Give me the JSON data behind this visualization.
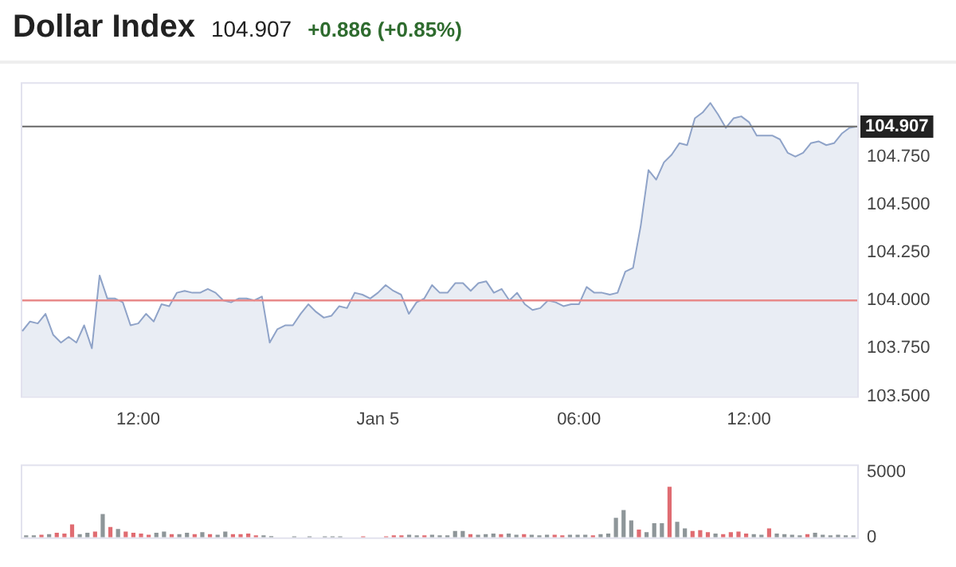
{
  "chart_data": [
    {
      "type": "area",
      "title": "Dollar Index",
      "subtitle": "104.907",
      "annotations": [
        "+0.886 (+0.85%)"
      ],
      "categories": [
        null,
        null,
        null,
        null,
        null,
        null,
        null,
        null,
        null,
        null,
        null,
        null,
        null,
        null,
        null,
        "12:00",
        null,
        null,
        null,
        null,
        null,
        null,
        null,
        null,
        null,
        null,
        null,
        null,
        null,
        null,
        null,
        null,
        null,
        null,
        null,
        null,
        null,
        null,
        null,
        null,
        null,
        null,
        null,
        null,
        null,
        null,
        "Jan 5",
        null,
        null,
        null,
        null,
        null,
        null,
        null,
        null,
        null,
        null,
        null,
        null,
        null,
        null,
        null,
        null,
        null,
        null,
        null,
        null,
        null,
        null,
        null,
        null,
        null,
        "06:00",
        null,
        null,
        null,
        null,
        null,
        null,
        null,
        null,
        null,
        null,
        null,
        null,
        null,
        null,
        null,
        null,
        null,
        null,
        null,
        null,
        null,
        "12:00",
        null,
        null,
        null,
        null,
        null,
        null,
        null,
        null,
        null,
        null,
        null,
        null,
        null,
        null
      ],
      "series": [
        {
          "color": "#8fa3c8",
          "values": [
            103.84,
            103.89,
            103.88,
            103.93,
            103.82,
            103.78,
            103.81,
            103.78,
            103.87,
            103.75,
            104.13,
            104.01,
            104.01,
            103.99,
            103.87,
            103.88,
            103.93,
            103.89,
            103.98,
            103.97,
            104.04,
            104.05,
            104.04,
            104.04,
            104.06,
            104.04,
            104.0,
            103.99,
            104.01,
            104.01,
            104.0,
            104.02,
            103.78,
            103.85,
            103.87,
            103.87,
            103.93,
            103.98,
            103.94,
            103.91,
            103.92,
            103.97,
            103.96,
            104.04,
            104.03,
            104.01,
            104.04,
            104.08,
            104.05,
            104.03,
            103.93,
            103.99,
            104.01,
            104.08,
            104.04,
            104.04,
            104.09,
            104.09,
            104.05,
            104.09,
            104.1,
            104.04,
            104.06,
            104.0,
            104.04,
            103.98,
            103.95,
            103.96,
            104.0,
            103.99,
            103.97,
            103.98,
            103.98,
            104.07,
            104.04,
            104.04,
            104.03,
            104.04,
            104.15,
            104.17,
            104.39,
            104.68,
            104.63,
            104.72,
            104.76,
            104.82,
            104.81,
            104.95,
            104.98,
            105.03,
            104.97,
            104.9,
            104.95,
            104.96,
            104.93,
            104.86,
            104.86,
            104.86,
            104.84,
            104.77,
            104.75,
            104.77,
            104.82,
            104.83,
            104.81,
            104.82,
            104.87,
            104.9,
            104.907
          ]
        }
      ],
      "ylim": [
        103.5,
        105.13
      ],
      "yticks": [
        {
          "value": 103.5,
          "label": "103.500"
        },
        {
          "value": 103.75,
          "label": "103.750"
        },
        {
          "value": 104.0,
          "label": "104.000"
        },
        {
          "value": 104.25,
          "label": "104.250"
        },
        {
          "value": 104.5,
          "label": "104.500"
        },
        {
          "value": 104.75,
          "label": "104.750"
        }
      ],
      "ref_lines": [
        {
          "axis": "y",
          "value": 104.907,
          "label": "104.907",
          "color": "#777777"
        },
        {
          "axis": "y",
          "value": 104.0,
          "color": "#e88a8a"
        }
      ],
      "marker": "none",
      "legend": false,
      "grid": false
    },
    {
      "type": "bar",
      "categories": [
        null,
        null,
        null,
        null,
        null,
        null,
        null,
        null,
        null,
        null,
        null,
        null,
        null,
        null,
        null,
        null,
        null,
        null,
        null,
        null,
        null,
        null,
        null,
        null,
        null,
        null,
        null,
        null,
        null,
        null,
        null,
        null,
        null,
        null,
        null,
        null,
        null,
        null,
        null,
        null,
        null,
        null,
        null,
        null,
        null,
        null,
        null,
        null,
        null,
        null,
        null,
        null,
        null,
        null,
        null,
        null,
        null,
        null,
        null,
        null,
        null,
        null,
        null,
        null,
        null,
        null,
        null,
        null,
        null,
        null,
        null,
        null,
        null,
        null,
        null,
        null,
        null,
        null,
        null,
        null,
        null,
        null,
        null,
        null,
        null,
        null,
        null,
        null,
        null,
        null,
        null,
        null,
        null,
        null,
        null,
        null,
        null,
        null,
        null,
        null,
        null,
        null,
        null,
        null,
        null,
        null,
        null,
        null,
        null
      ],
      "values": [
        150,
        150,
        200,
        250,
        350,
        300,
        1000,
        250,
        350,
        450,
        1800,
        800,
        650,
        450,
        350,
        300,
        200,
        350,
        450,
        250,
        250,
        350,
        250,
        400,
        250,
        200,
        450,
        250,
        250,
        300,
        150,
        150,
        100,
        null,
        null,
        80,
        null,
        80,
        null,
        80,
        80,
        80,
        null,
        null,
        80,
        null,
        null,
        80,
        150,
        150,
        200,
        150,
        150,
        200,
        150,
        150,
        500,
        500,
        250,
        200,
        250,
        300,
        250,
        300,
        200,
        250,
        200,
        150,
        200,
        200,
        150,
        200,
        200,
        200,
        150,
        250,
        300,
        1500,
        2100,
        1300,
        600,
        400,
        1100,
        1100,
        3900,
        1200,
        700,
        500,
        550,
        400,
        300,
        250,
        400,
        450,
        300,
        250,
        200,
        700,
        300,
        250,
        200,
        150,
        250,
        350,
        200,
        150,
        200,
        150,
        150
      ],
      "colors": [
        "#8e9699",
        "#8e9699",
        "#e06c72",
        "#8e9699",
        "#e06c72",
        "#e06c72",
        "#e06c72",
        "#8e9699",
        "#8e9699",
        "#e06c72",
        "#8e9699",
        "#e06c72",
        "#8e9699",
        "#e06c72",
        "#e06c72",
        "#e06c72",
        "#e06c72",
        "#8e9699",
        "#8e9699",
        "#e06c72",
        "#8e9699",
        "#8e9699",
        "#e06c72",
        "#8e9699",
        "#e06c72",
        "#8e9699",
        "#8e9699",
        "#e06c72",
        "#e06c72",
        "#e06c72",
        "#e06c72",
        "#8e9699",
        "#8e9699",
        "#8e9699",
        "#8e9699",
        "#8e9699",
        "#8e9699",
        "#8e9699",
        "#8e9699",
        "#8e9699",
        "#8e9699",
        "#8e9699",
        "#8e9699",
        "#8e9699",
        "#e06c72",
        "#e06c72",
        "#e06c72",
        "#e06c72",
        "#e06c72",
        "#e06c72",
        "#8e9699",
        "#8e9699",
        "#e06c72",
        "#8e9699",
        "#8e9699",
        "#8e9699",
        "#8e9699",
        "#8e9699",
        "#e06c72",
        "#8e9699",
        "#8e9699",
        "#8e9699",
        "#e06c72",
        "#8e9699",
        "#8e9699",
        "#e06c72",
        "#8e9699",
        "#8e9699",
        "#8e9699",
        "#e06c72",
        "#e06c72",
        "#8e9699",
        "#8e9699",
        "#8e9699",
        "#e06c72",
        "#8e9699",
        "#8e9699",
        "#8e9699",
        "#8e9699",
        "#8e9699",
        "#e06c72",
        "#8e9699",
        "#8e9699",
        "#8e9699",
        "#e06c72",
        "#8e9699",
        "#8e9699",
        "#e06c72",
        "#e06c72",
        "#e06c72",
        "#8e9699",
        "#e06c72",
        "#e06c72",
        "#e06c72",
        "#e06c72",
        "#8e9699",
        "#8e9699",
        "#e06c72",
        "#8e9699",
        "#8e9699",
        "#8e9699",
        "#8e9699",
        "#e06c72",
        "#8e9699",
        "#8e9699",
        "#8e9699",
        "#8e9699",
        "#8e9699",
        "#8e9699"
      ],
      "ylim": [
        0,
        5500
      ],
      "yticks": [
        0,
        5000
      ],
      "tick_labels": "y",
      "legend": false,
      "grid": false
    }
  ]
}
